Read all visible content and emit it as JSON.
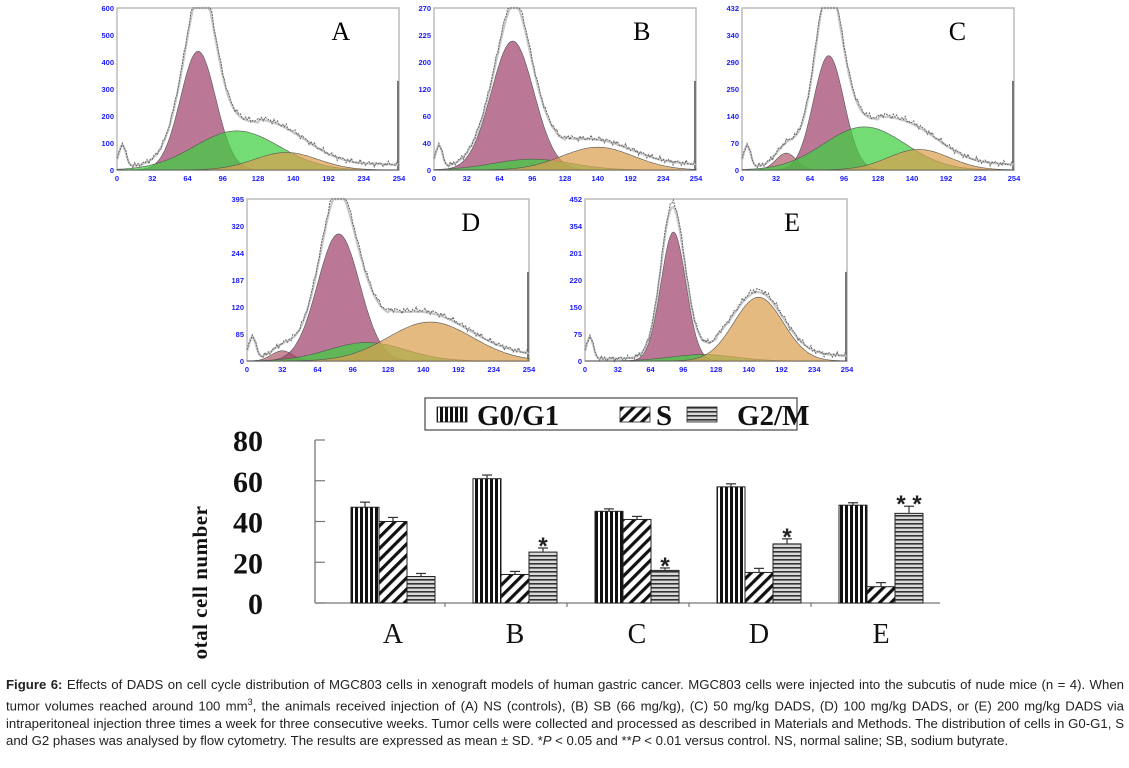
{
  "chart_data": [
    {
      "type": "area",
      "panel": "A",
      "title": "A",
      "x_ticks": [
        "0",
        "32",
        "64",
        "96",
        "128",
        "140",
        "192",
        "234",
        "254"
      ],
      "y_ticks": [
        "0",
        "100",
        "200",
        "300",
        "400",
        "500",
        "600"
      ],
      "ylim": [
        0,
        600
      ],
      "components": [
        {
          "name": "G0/G1",
          "color": "#a0446e",
          "center_tick_index": 2.3,
          "width_ticks": 0.5,
          "peak": 440
        },
        {
          "name": "S",
          "color": "#3ecf3e",
          "center_tick_index": 3.4,
          "width_ticks": 1.2,
          "peak": 145
        },
        {
          "name": "G2/M",
          "color": "#d9a050",
          "center_tick_index": 4.8,
          "width_ticks": 0.9,
          "peak": 65
        }
      ],
      "envelope_peak": 570
    },
    {
      "type": "area",
      "panel": "B",
      "title": "B",
      "x_ticks": [
        "0",
        "32",
        "64",
        "96",
        "128",
        "140",
        "192",
        "234",
        "254"
      ],
      "y_ticks": [
        "0",
        "40",
        "60",
        "120",
        "200",
        "225",
        "270"
      ],
      "ylim": [
        0,
        270
      ],
      "components": [
        {
          "name": "G0/G1",
          "color": "#a0446e",
          "center_tick_index": 2.4,
          "width_ticks": 0.65,
          "peak": 215
        },
        {
          "name": "S",
          "color": "#3ecf3e",
          "center_tick_index": 3.0,
          "width_ticks": 1.2,
          "peak": 18
        },
        {
          "name": "G2/M",
          "color": "#d9a050",
          "center_tick_index": 5.0,
          "width_ticks": 1.1,
          "peak": 38
        }
      ],
      "envelope_peak": 260
    },
    {
      "type": "area",
      "panel": "C",
      "title": "C",
      "x_ticks": [
        "0",
        "32",
        "64",
        "96",
        "128",
        "140",
        "192",
        "234",
        "254"
      ],
      "y_ticks": [
        "0",
        "70",
        "140",
        "250",
        "290",
        "340",
        "432"
      ],
      "ylim": [
        0,
        432
      ],
      "components": [
        {
          "name": "Sub-G1",
          "color": "#b36070",
          "center_tick_index": 1.3,
          "width_ticks": 0.3,
          "peak": 45
        },
        {
          "name": "G0/G1",
          "color": "#a0446e",
          "center_tick_index": 2.55,
          "width_ticks": 0.45,
          "peak": 305
        },
        {
          "name": "S",
          "color": "#3ecf3e",
          "center_tick_index": 3.6,
          "width_ticks": 1.2,
          "peak": 115
        },
        {
          "name": "G2/M",
          "color": "#d9a050",
          "center_tick_index": 5.2,
          "width_ticks": 0.9,
          "peak": 55
        }
      ],
      "envelope_peak": 400
    },
    {
      "type": "area",
      "panel": "D",
      "title": "D",
      "x_ticks": [
        "0",
        "32",
        "64",
        "96",
        "128",
        "140",
        "192",
        "234",
        "254"
      ],
      "y_ticks": [
        "0",
        "85",
        "120",
        "187",
        "244",
        "320",
        "395"
      ],
      "ylim": [
        0,
        395
      ],
      "components": [
        {
          "name": "Sub-G1",
          "color": "#b36070",
          "center_tick_index": 1.0,
          "width_ticks": 0.3,
          "peak": 25
        },
        {
          "name": "G0/G1",
          "color": "#a0446e",
          "center_tick_index": 2.6,
          "width_ticks": 0.6,
          "peak": 310
        },
        {
          "name": "S",
          "color": "#3ecf3e",
          "center_tick_index": 3.4,
          "width_ticks": 1.1,
          "peak": 45
        },
        {
          "name": "G2/M",
          "color": "#d9a050",
          "center_tick_index": 5.2,
          "width_ticks": 1.2,
          "peak": 95
        }
      ],
      "envelope_peak": 370
    },
    {
      "type": "area",
      "panel": "E",
      "title": "E",
      "x_ticks": [
        "0",
        "32",
        "64",
        "96",
        "128",
        "140",
        "192",
        "234",
        "254"
      ],
      "y_ticks": [
        "0",
        "75",
        "150",
        "220",
        "201",
        "354",
        "452"
      ],
      "ylim": [
        0,
        452
      ],
      "components": [
        {
          "name": "G0/G1",
          "color": "#a0446e",
          "center_tick_index": 2.7,
          "width_ticks": 0.38,
          "peak": 360
        },
        {
          "name": "S",
          "color": "#3ecf3e",
          "center_tick_index": 3.6,
          "width_ticks": 1.0,
          "peak": 18
        },
        {
          "name": "G2/M",
          "color": "#d9a050",
          "center_tick_index": 5.3,
          "width_ticks": 0.75,
          "peak": 178
        }
      ],
      "envelope_peak": 430
    },
    {
      "type": "bar",
      "title": "",
      "categories": [
        "A",
        "B",
        "C",
        "D",
        "E"
      ],
      "xlabel": "",
      "ylabel": "% of total cell number",
      "ylim": [
        0,
        80
      ],
      "y_ticks": [
        "0",
        "20",
        "40",
        "60",
        "80"
      ],
      "legend": {
        "position": "top",
        "entries": [
          "G0/G1",
          "S",
          "G2/M"
        ]
      },
      "series": [
        {
          "name": "G0/G1",
          "pattern": "vertical-stripes",
          "values": [
            47,
            61,
            45,
            57,
            48
          ],
          "errors": [
            2.5,
            1.8,
            1.2,
            1.5,
            1.2
          ]
        },
        {
          "name": "S",
          "pattern": "diagonal-stripes",
          "values": [
            40,
            14,
            41,
            15,
            8
          ],
          "errors": [
            2.0,
            1.5,
            1.5,
            2.0,
            2.0
          ]
        },
        {
          "name": "G2/M",
          "pattern": "horizontal-stripes",
          "values": [
            13,
            25,
            16,
            29,
            44
          ],
          "errors": [
            1.5,
            2.0,
            1.2,
            2.5,
            3.5
          ]
        }
      ],
      "annotations": [
        {
          "category": "B",
          "series": "G2/M",
          "text": "*"
        },
        {
          "category": "C",
          "series": "G2/M",
          "text": "*"
        },
        {
          "category": "D",
          "series": "G2/M",
          "text": "*"
        },
        {
          "category": "E",
          "series": "G2/M",
          "text": "* *"
        }
      ]
    }
  ],
  "caption": {
    "label": "Figure 6:",
    "text_1": " Effects of DADS on cell cycle distribution of MGC803 cells in xenograft models of human gastric cancer. MGC803 cells were injected into the subcutis of nude mice (n = 4). When tumor volumes reached around 100 mm",
    "sup": "3",
    "text_2": ", the animals received injection of (A) NS (controls), (B) SB (66 mg/kg), (C) 50 mg/kg DADS, (D) 100 mg/kg DADS, or (E) 200 mg/kg DADS via intraperitoneal injection three times a week for three consecutive weeks. Tumor cells were collected and processed as described in Materials and Methods. The distribution of cells in G0-G1, S and G2 phases was analysed by flow cytometry. The results are expressed as mean ± SD. *",
    "p1": "P",
    "text_3": " < 0.05 and **",
    "p2": "P",
    "text_4": " < 0.01 versus control. NS, normal saline; SB, sodium butyrate."
  }
}
